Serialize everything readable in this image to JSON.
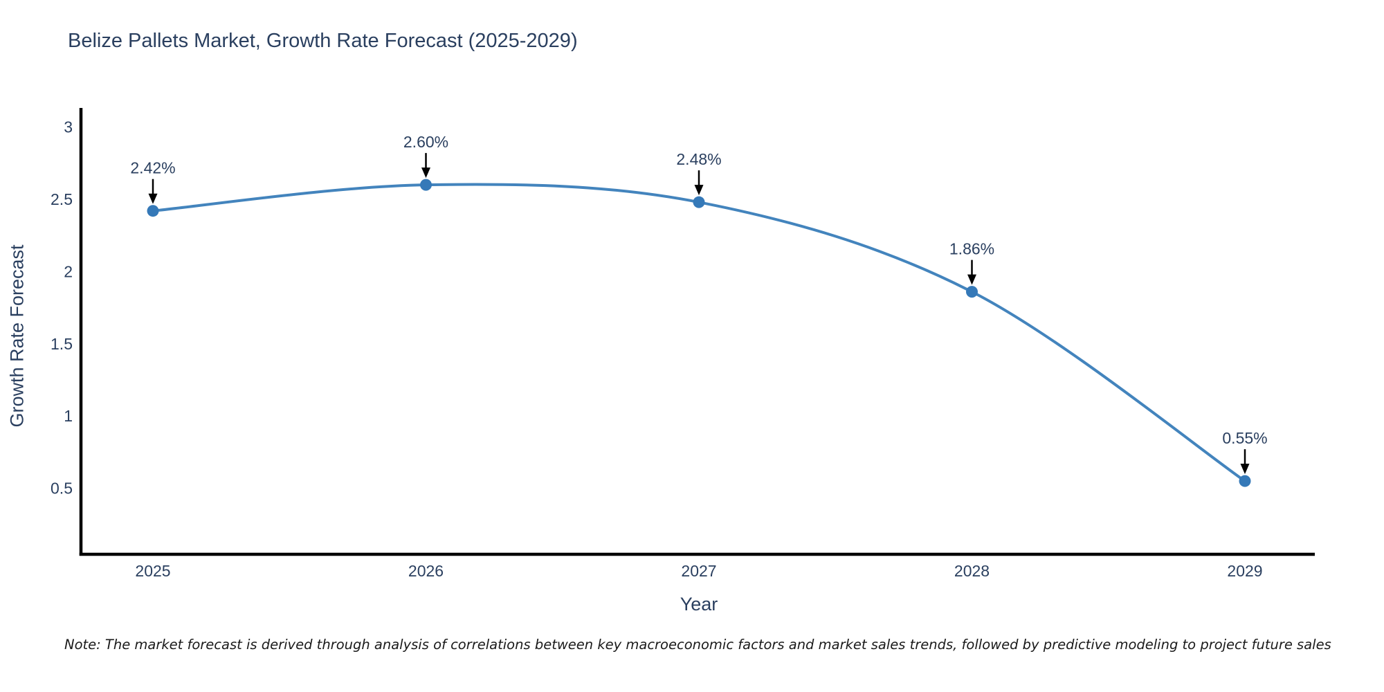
{
  "title": "Belize Pallets Market, Growth Rate Forecast (2025-2029)",
  "note": "Note: The market forecast is derived through analysis of correlations between key macroeconomic factors and market sales trends, followed by predictive modeling to project future sales",
  "chart_data": {
    "type": "line",
    "line_shape": "spline",
    "title": "Belize Pallets Market, Growth Rate Forecast (2025-2029)",
    "xlabel": "Year",
    "ylabel": "Growth Rate Forecast",
    "categories": [
      "2025",
      "2026",
      "2027",
      "2028",
      "2029"
    ],
    "series": [
      {
        "name": "Growth Rate Forecast",
        "values": [
          2.42,
          2.6,
          2.48,
          1.86,
          0.55
        ]
      }
    ],
    "point_labels": [
      "2.42%",
      "2.60%",
      "2.48%",
      "1.86%",
      "0.55%"
    ],
    "yticks": [
      0.5,
      1,
      1.5,
      2,
      2.5,
      3
    ],
    "ylim": [
      0.04,
      3.12
    ],
    "grid": false,
    "legend_position": "none",
    "annotation_arrows": true,
    "colors": {
      "line": "#4384bd",
      "marker": "#3579b8",
      "axis": "#000000",
      "text": "#2a3f5f",
      "arrow": "#000000",
      "background": "#ffffff"
    }
  }
}
